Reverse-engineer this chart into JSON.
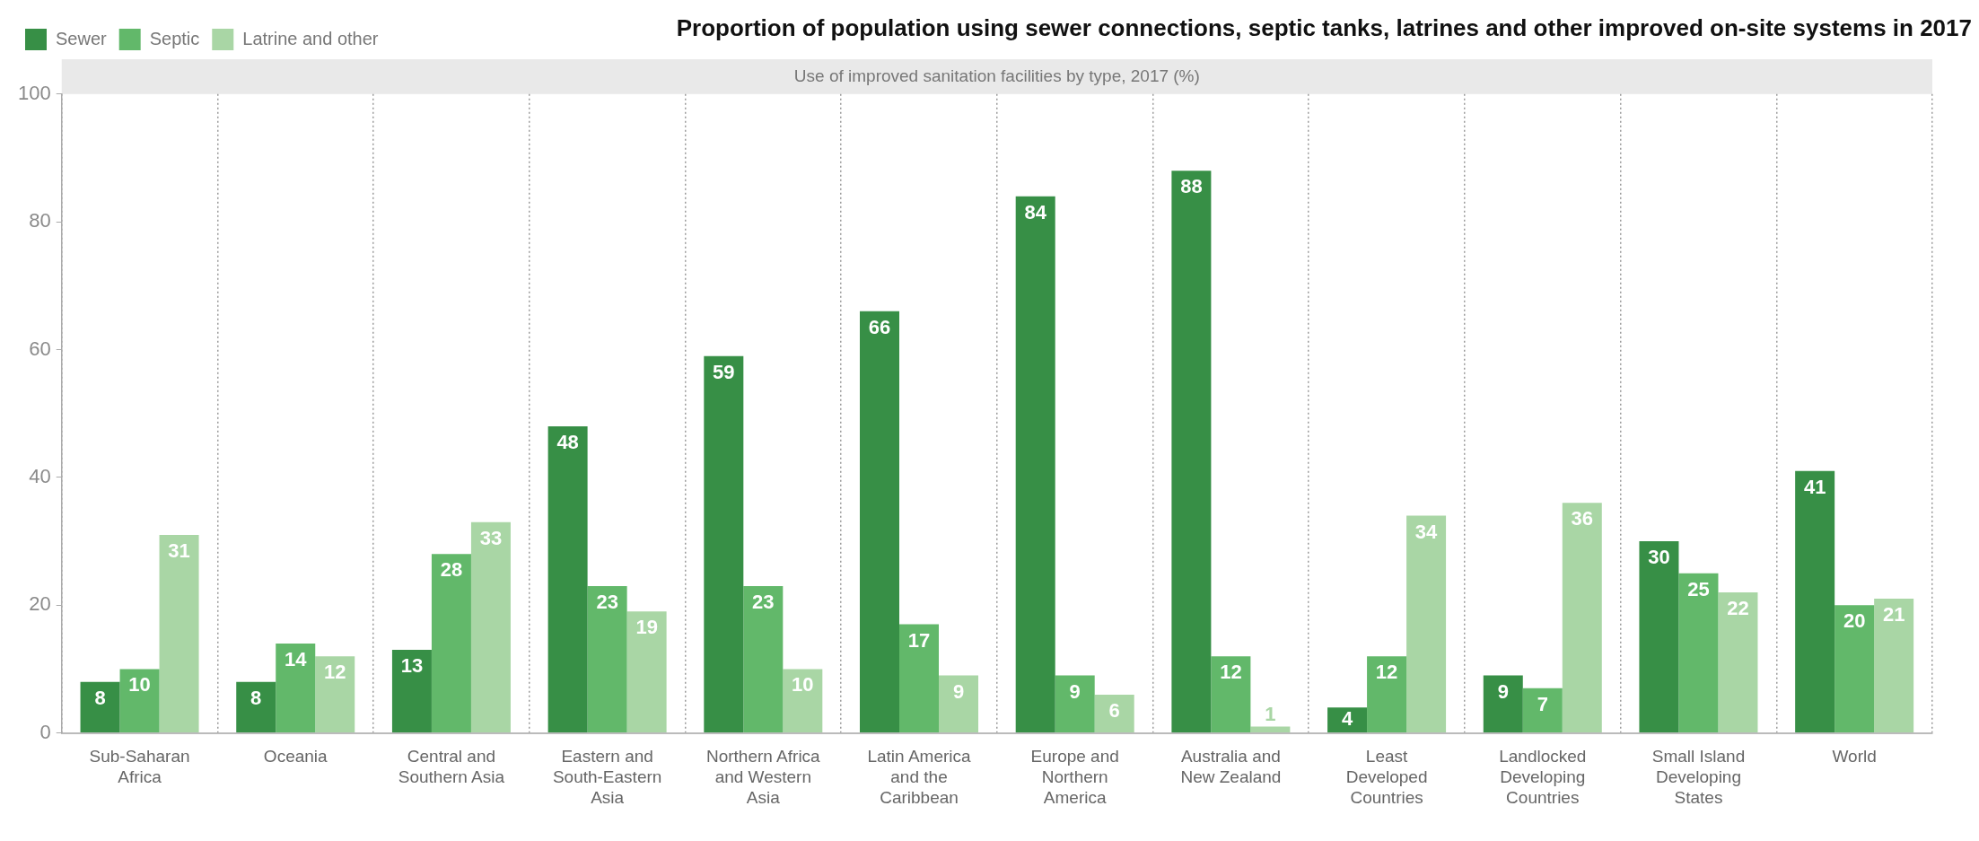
{
  "chart_data": {
    "type": "bar",
    "title": "Proportion of population using sewer connections, septic tanks, latrines and other improved on-site systems in 2017",
    "subtitle": "Use of improved sanitation facilities by type, 2017 (%)",
    "categories": [
      "Sub-Saharan Africa",
      "Oceania",
      "Central and Southern Asia",
      "Eastern and South-Eastern Asia",
      "Northern Africa and Western Asia",
      "Latin America and the Caribbean",
      "Europe and Northern America",
      "Australia and New Zealand",
      "Least Developed Countries",
      "Landlocked Developing Countries",
      "Small Island Developing States",
      "World"
    ],
    "series": [
      {
        "name": "Sewer",
        "color": "#378f46",
        "values": [
          8,
          8,
          13,
          48,
          59,
          66,
          84,
          88,
          4,
          9,
          30,
          41
        ]
      },
      {
        "name": "Septic",
        "color": "#62b86a",
        "values": [
          10,
          14,
          28,
          23,
          23,
          17,
          9,
          12,
          12,
          7,
          25,
          20
        ]
      },
      {
        "name": "Latrine and other",
        "color": "#a9d6a5",
        "values": [
          31,
          12,
          33,
          19,
          10,
          9,
          6,
          1,
          34,
          36,
          22,
          21
        ]
      }
    ],
    "ylim": [
      0,
      100
    ],
    "yticks": [
      0,
      20,
      40,
      60,
      80,
      100
    ],
    "grid": "x",
    "legend": "top left",
    "data_labels": true
  }
}
